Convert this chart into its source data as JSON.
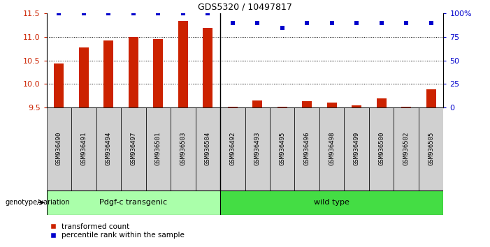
{
  "title": "GDS5320 / 10497817",
  "categories": [
    "GSM936490",
    "GSM936491",
    "GSM936494",
    "GSM936497",
    "GSM936501",
    "GSM936503",
    "GSM936504",
    "GSM936492",
    "GSM936493",
    "GSM936495",
    "GSM936496",
    "GSM936498",
    "GSM936499",
    "GSM936500",
    "GSM936502",
    "GSM936505"
  ],
  "bar_values": [
    10.43,
    10.78,
    10.93,
    11.0,
    10.95,
    11.35,
    11.2,
    9.52,
    9.65,
    9.51,
    9.63,
    9.6,
    9.55,
    9.69,
    9.51,
    9.88
  ],
  "dot_values_pct": [
    100,
    100,
    100,
    100,
    100,
    100,
    100,
    90,
    90,
    85,
    90,
    90,
    90,
    90,
    90,
    90
  ],
  "ymin": 9.5,
  "ymax": 11.5,
  "y_ticks": [
    9.5,
    10.0,
    10.5,
    11.0,
    11.5
  ],
  "right_yticks": [
    0,
    25,
    50,
    75,
    100
  ],
  "right_ytick_labels": [
    "0",
    "25",
    "50",
    "75",
    "100%"
  ],
  "bar_color": "#cc2200",
  "dot_color": "#0000cc",
  "group1_label": "Pdgf-c transgenic",
  "group2_label": "wild type",
  "group1_color": "#aaffaa",
  "group2_color": "#44dd44",
  "group1_count": 7,
  "group2_count": 9,
  "legend_bar_label": "transformed count",
  "legend_dot_label": "percentile rank within the sample",
  "genotype_label": "genotype/variation",
  "tick_label_color_left": "#cc2200",
  "tick_label_color_right": "#0000cc",
  "panel_bg": "#d8d8d8",
  "grid_color": "#000000",
  "bar_width": 0.4
}
